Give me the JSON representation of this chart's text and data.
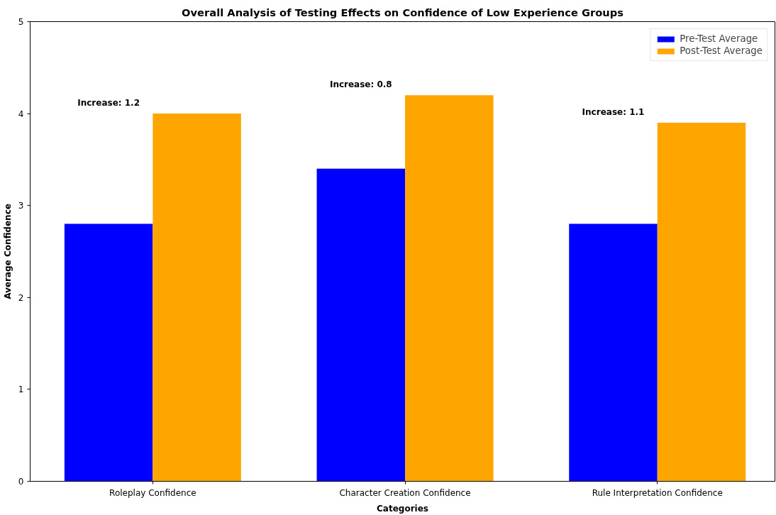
{
  "chart_data": {
    "type": "bar",
    "title": "Overall Analysis of Testing Effects on Confidence of Low Experience Groups",
    "xlabel": "Categories",
    "ylabel": "Average Confidence",
    "categories": [
      "Roleplay Confidence",
      "Character Creation Confidence",
      "Rule Interpretation Confidence"
    ],
    "series": [
      {
        "name": "Pre-Test Average",
        "color": "#0000ff",
        "values": [
          2.8,
          3.4,
          2.8
        ]
      },
      {
        "name": "Post-Test Average",
        "color": "#ffa500",
        "values": [
          4.0,
          4.2,
          3.9
        ]
      }
    ],
    "ylim": [
      0,
      5
    ],
    "yticks": [
      0,
      1,
      2,
      3,
      4,
      5
    ],
    "grid": false,
    "legend": "top right",
    "annotations": [
      "Increase: 1.2",
      "Increase: 0.8",
      "Increase: 1.1"
    ]
  }
}
